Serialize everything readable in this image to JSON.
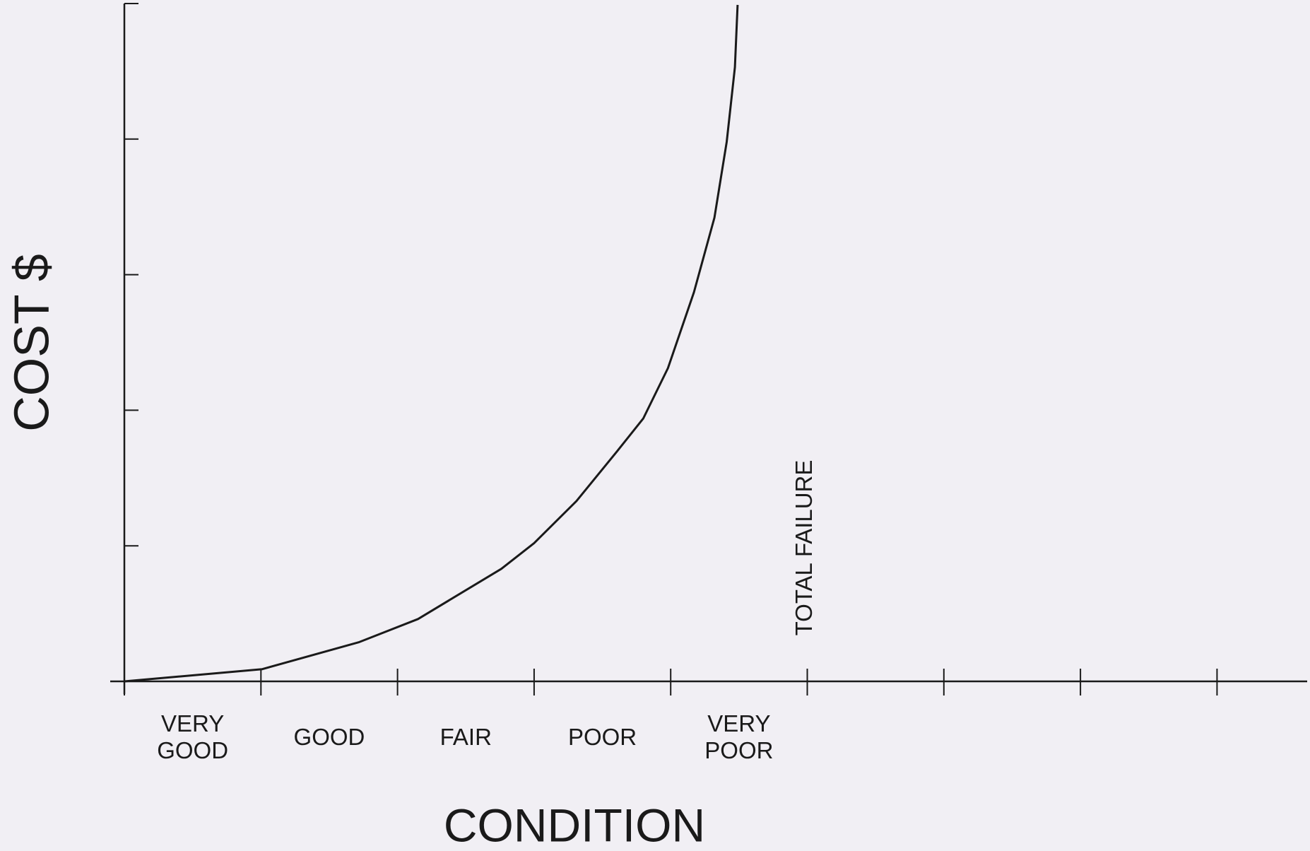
{
  "chart_data": {
    "type": "line",
    "x_label": "CONDITION",
    "y_label": "COST $",
    "annotation": "TOTAL FAILURE",
    "categories": [
      "VERY\nGOOD",
      "GOOD",
      "FAIR",
      "POOR",
      "VERY\nPOOR"
    ],
    "x": [
      0,
      1.01,
      1.72,
      2.15,
      2.76,
      3.0,
      3.31,
      3.61,
      3.8,
      3.98,
      4.17,
      4.32,
      4.41,
      4.47,
      4.49
    ],
    "values": [
      0,
      0.09,
      0.29,
      0.46,
      0.83,
      1.02,
      1.33,
      1.7,
      1.94,
      2.31,
      2.87,
      3.42,
      3.98,
      4.53,
      4.99
    ],
    "color": "#1a1a1a",
    "xlim": [
      0,
      8.66
    ],
    "ylim": [
      0,
      5
    ],
    "xticks": [
      0,
      1,
      2,
      3,
      4,
      5,
      6,
      7,
      8
    ],
    "yticks": [
      0,
      1,
      2,
      3,
      4,
      5
    ]
  }
}
